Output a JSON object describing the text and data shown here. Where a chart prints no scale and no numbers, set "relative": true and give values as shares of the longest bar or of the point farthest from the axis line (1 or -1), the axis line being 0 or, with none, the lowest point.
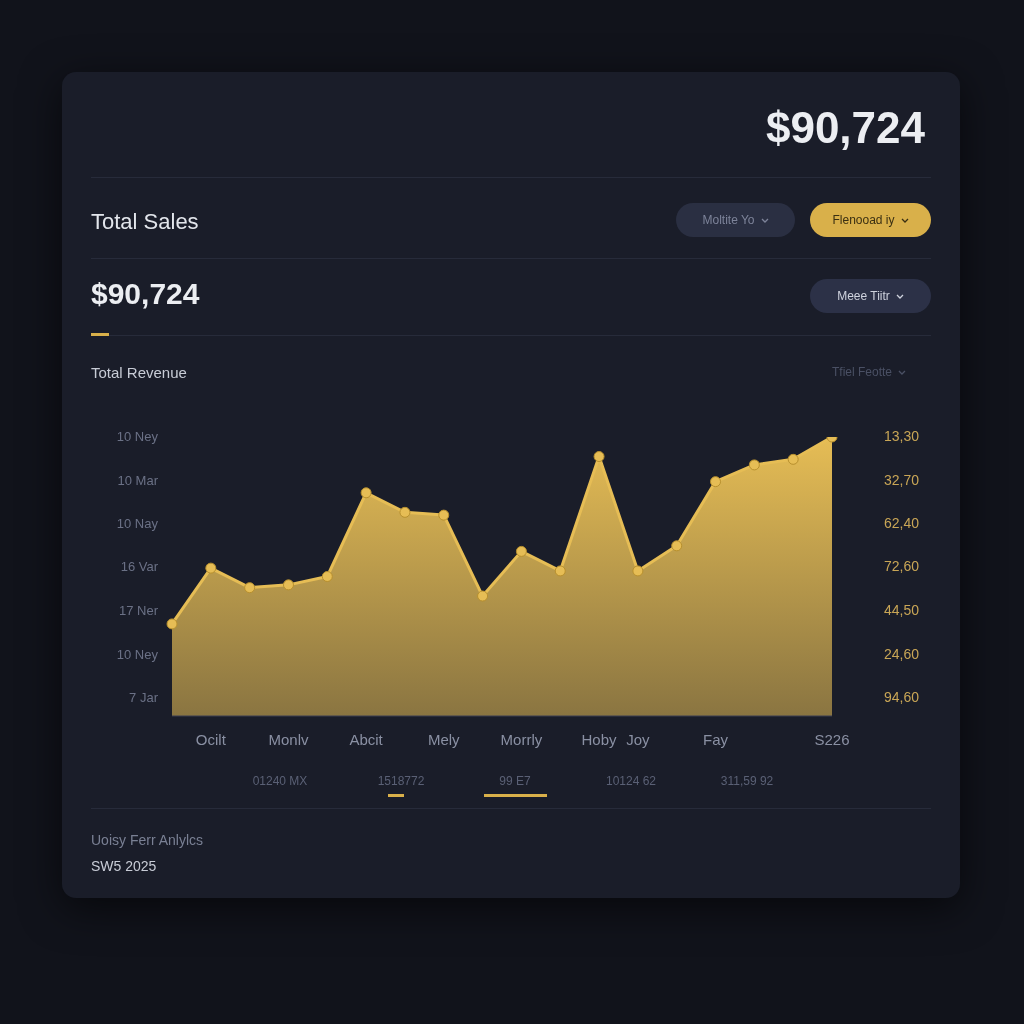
{
  "chart_data": {
    "type": "area",
    "title": "Total Sales",
    "subtitle": "$90,724",
    "relative": true,
    "categories": [
      null,
      "Ocilt",
      null,
      "Monlv",
      null,
      "Abcit",
      null,
      "Mely",
      null,
      "Morrly",
      null,
      "Hoby",
      "Joy",
      null,
      "Fay",
      null,
      null,
      "S226"
    ],
    "series": [
      {
        "color": "#e6bd55",
        "values": [
          0.33,
          0.53,
          0.46,
          0.47,
          0.5,
          0.8,
          0.73,
          0.72,
          0.43,
          0.59,
          0.52,
          0.93,
          0.52,
          0.61,
          0.84,
          0.9,
          0.92,
          1
        ]
      }
    ],
    "marker": "circle",
    "annotations": [
      "$90,724",
      "Moltite Yo",
      "Flenooad iy",
      "Meee Tiitr",
      "Total Revenue",
      "Tfiel Feotte",
      "10 Ney",
      "10 Mar",
      "10 Nay",
      "16 Var",
      "17 Ner",
      "10 Ney",
      "7 Jar",
      "13,30",
      "32,70",
      "62,40",
      "72,60",
      "44,50",
      "24,60",
      "94,60",
      "01240 MX",
      "1518772",
      "99 E7",
      "10124 62",
      "311,59 92",
      "Uoisy Ferr Anlylcs",
      "SW5 2025"
    ]
  }
}
